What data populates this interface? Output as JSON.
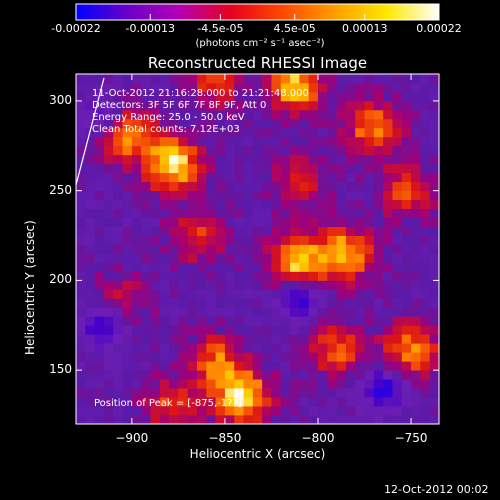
{
  "colorbar": {
    "ticks": [
      "-0.00022",
      "-0.00013",
      "-4.5e-05",
      "4.5e-05",
      "0.00013",
      "0.00022"
    ],
    "tick_values": [
      -0.00022,
      -0.00013,
      -4.5e-05,
      4.5e-05,
      0.00013,
      0.00022
    ],
    "range": [
      -0.00022,
      0.00022
    ],
    "unit_label": "(photons cm⁻² s⁻¹ asec⁻²)",
    "colors": [
      "#0000ff",
      "#6a00c8",
      "#b400b4",
      "#e8001c",
      "#ff4a00",
      "#ff9e00",
      "#ffe800",
      "#ffffff"
    ]
  },
  "chart_data": {
    "type": "heatmap",
    "title": "Reconstructed RHESSI Image",
    "xlabel": "Heliocentric X (arcsec)",
    "ylabel": "Heliocentric Y (arcsec)",
    "xlim": [
      -930,
      -735
    ],
    "ylim": [
      120,
      315
    ],
    "x_ticks": [
      -900,
      -850,
      -800,
      -750
    ],
    "y_ticks": [
      150,
      200,
      250,
      300
    ],
    "x_tick_labels": [
      "−900",
      "−850",
      "−800",
      "−750"
    ],
    "y_tick_labels": [
      "150",
      "200",
      "250",
      "300"
    ],
    "annotations": [
      "11-Oct-2012 21:16:28.000 to 21:21:48.000",
      "Detectors: 3F 5F 6F 7F 8F 9F, Att 0",
      "Energy Range: 25.0 - 50.0 keV",
      "Clean    Total counts: 7.12E+03"
    ],
    "peak_label": "Position of Peak = [-875,-1??]",
    "sources": [
      {
        "x": -878,
        "y": 265,
        "intensity": 0.95
      },
      {
        "x": -905,
        "y": 283,
        "intensity": 0.8
      },
      {
        "x": -855,
        "y": 312,
        "intensity": 0.55
      },
      {
        "x": -812,
        "y": 308,
        "intensity": 0.85
      },
      {
        "x": -812,
        "y": 210,
        "intensity": 0.85
      },
      {
        "x": -770,
        "y": 285,
        "intensity": 0.7
      },
      {
        "x": -785,
        "y": 215,
        "intensity": 0.8
      },
      {
        "x": -752,
        "y": 250,
        "intensity": 0.55
      },
      {
        "x": -790,
        "y": 162,
        "intensity": 0.6
      },
      {
        "x": -750,
        "y": 162,
        "intensity": 0.7
      },
      {
        "x": -855,
        "y": 155,
        "intensity": 0.6
      },
      {
        "x": -840,
        "y": 135,
        "intensity": 0.9
      },
      {
        "x": -880,
        "y": 130,
        "intensity": 0.5
      },
      {
        "x": -865,
        "y": 225,
        "intensity": 0.5
      },
      {
        "x": -905,
        "y": 190,
        "intensity": 0.35
      },
      {
        "x": -810,
        "y": 255,
        "intensity": 0.45
      }
    ],
    "negative_regions": [
      {
        "x": -915,
        "y": 290
      },
      {
        "x": -810,
        "y": 190
      },
      {
        "x": -915,
        "y": 175
      },
      {
        "x": -765,
        "y": 140
      }
    ]
  },
  "footer": {
    "timestamp": "12-Oct-2012 00:02"
  }
}
